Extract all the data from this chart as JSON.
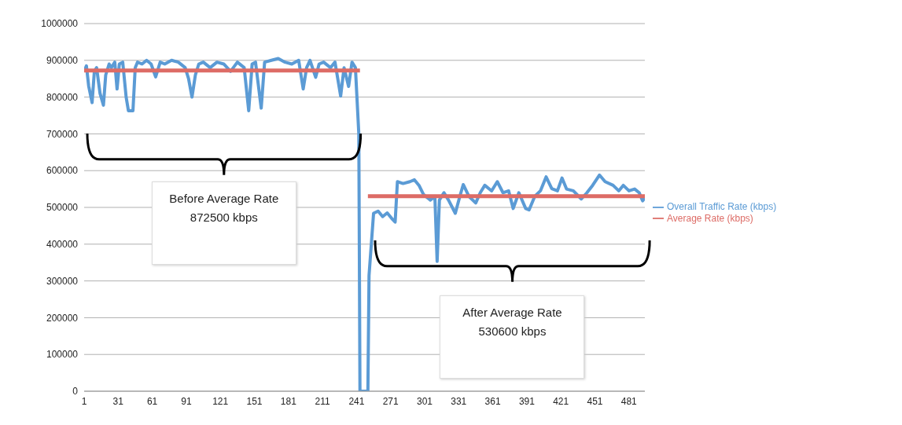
{
  "chart_data": {
    "type": "line",
    "xlim": [
      1,
      495
    ],
    "xticks": [
      1,
      31,
      61,
      91,
      121,
      151,
      181,
      211,
      241,
      271,
      301,
      331,
      361,
      391,
      421,
      451,
      481
    ],
    "ylim": [
      0,
      1000000
    ],
    "yticks": [
      0,
      100000,
      200000,
      300000,
      400000,
      500000,
      600000,
      700000,
      800000,
      900000,
      1000000
    ],
    "grid": "y",
    "legend": "right",
    "marker": "none",
    "line_style": "solid",
    "series": [
      {
        "name": "Overall Traffic Rate (kbps)",
        "color": "#5b9bd5",
        "x": [
          1,
          3,
          5,
          8,
          10,
          12,
          15,
          18,
          20,
          23,
          25,
          28,
          30,
          32,
          35,
          38,
          40,
          42,
          44,
          46,
          48,
          52,
          56,
          60,
          64,
          68,
          72,
          78,
          84,
          90,
          93,
          96,
          99,
          102,
          106,
          112,
          118,
          124,
          130,
          136,
          142,
          146,
          149,
          152,
          157,
          160,
          166,
          172,
          178,
          184,
          190,
          194,
          197,
          200,
          205,
          208,
          212,
          218,
          222,
          227,
          230,
          234,
          237,
          240,
          243,
          244,
          251,
          252,
          256,
          260,
          264,
          268,
          272,
          275,
          277,
          282,
          288,
          292,
          296,
          300,
          306,
          310,
          312,
          314,
          318,
          322,
          328,
          332,
          335,
          340,
          346,
          350,
          354,
          360,
          365,
          370,
          375,
          379,
          384,
          390,
          393,
          398,
          403,
          408,
          413,
          418,
          422,
          426,
          432,
          439,
          444,
          449,
          455,
          460,
          467,
          472,
          476,
          481,
          486,
          490,
          493,
          495
        ],
        "values": [
          870000,
          885000,
          830000,
          785000,
          870000,
          880000,
          810000,
          778000,
          860000,
          890000,
          880000,
          895000,
          822000,
          890000,
          895000,
          800000,
          763000,
          763000,
          763000,
          880000,
          895000,
          890000,
          900000,
          890000,
          855000,
          895000,
          890000,
          900000,
          895000,
          880000,
          850000,
          800000,
          860000,
          890000,
          895000,
          880000,
          895000,
          890000,
          870000,
          895000,
          880000,
          763000,
          890000,
          895000,
          770000,
          895000,
          900000,
          905000,
          895000,
          890000,
          900000,
          822000,
          880000,
          900000,
          854000,
          890000,
          895000,
          880000,
          895000,
          803000,
          880000,
          829000,
          895000,
          880000,
          700000,
          0,
          0,
          315000,
          484000,
          490000,
          475000,
          485000,
          470000,
          460000,
          570000,
          565000,
          570000,
          575000,
          560000,
          535000,
          520000,
          530000,
          353000,
          520000,
          540000,
          520000,
          484000,
          530000,
          562000,
          530000,
          512000,
          540000,
          560000,
          545000,
          570000,
          540000,
          545000,
          497000,
          540000,
          497000,
          493000,
          530000,
          545000,
          583000,
          551000,
          545000,
          580000,
          550000,
          545000,
          523000,
          540000,
          560000,
          588000,
          570000,
          560000,
          545000,
          560000,
          545000,
          550000,
          540000,
          518000,
          525000
        ]
      },
      {
        "name": "Average Rate (kbps)",
        "color": "#dd6c66",
        "x": [
          1,
          244,
          247,
          251,
          495
        ],
        "values": [
          872500,
          872500,
          null,
          530600,
          530600
        ]
      }
    ],
    "annotations": [
      "Before Average Rate 872500 kbps",
      "After Average Rate 530600 kbps"
    ]
  }
}
